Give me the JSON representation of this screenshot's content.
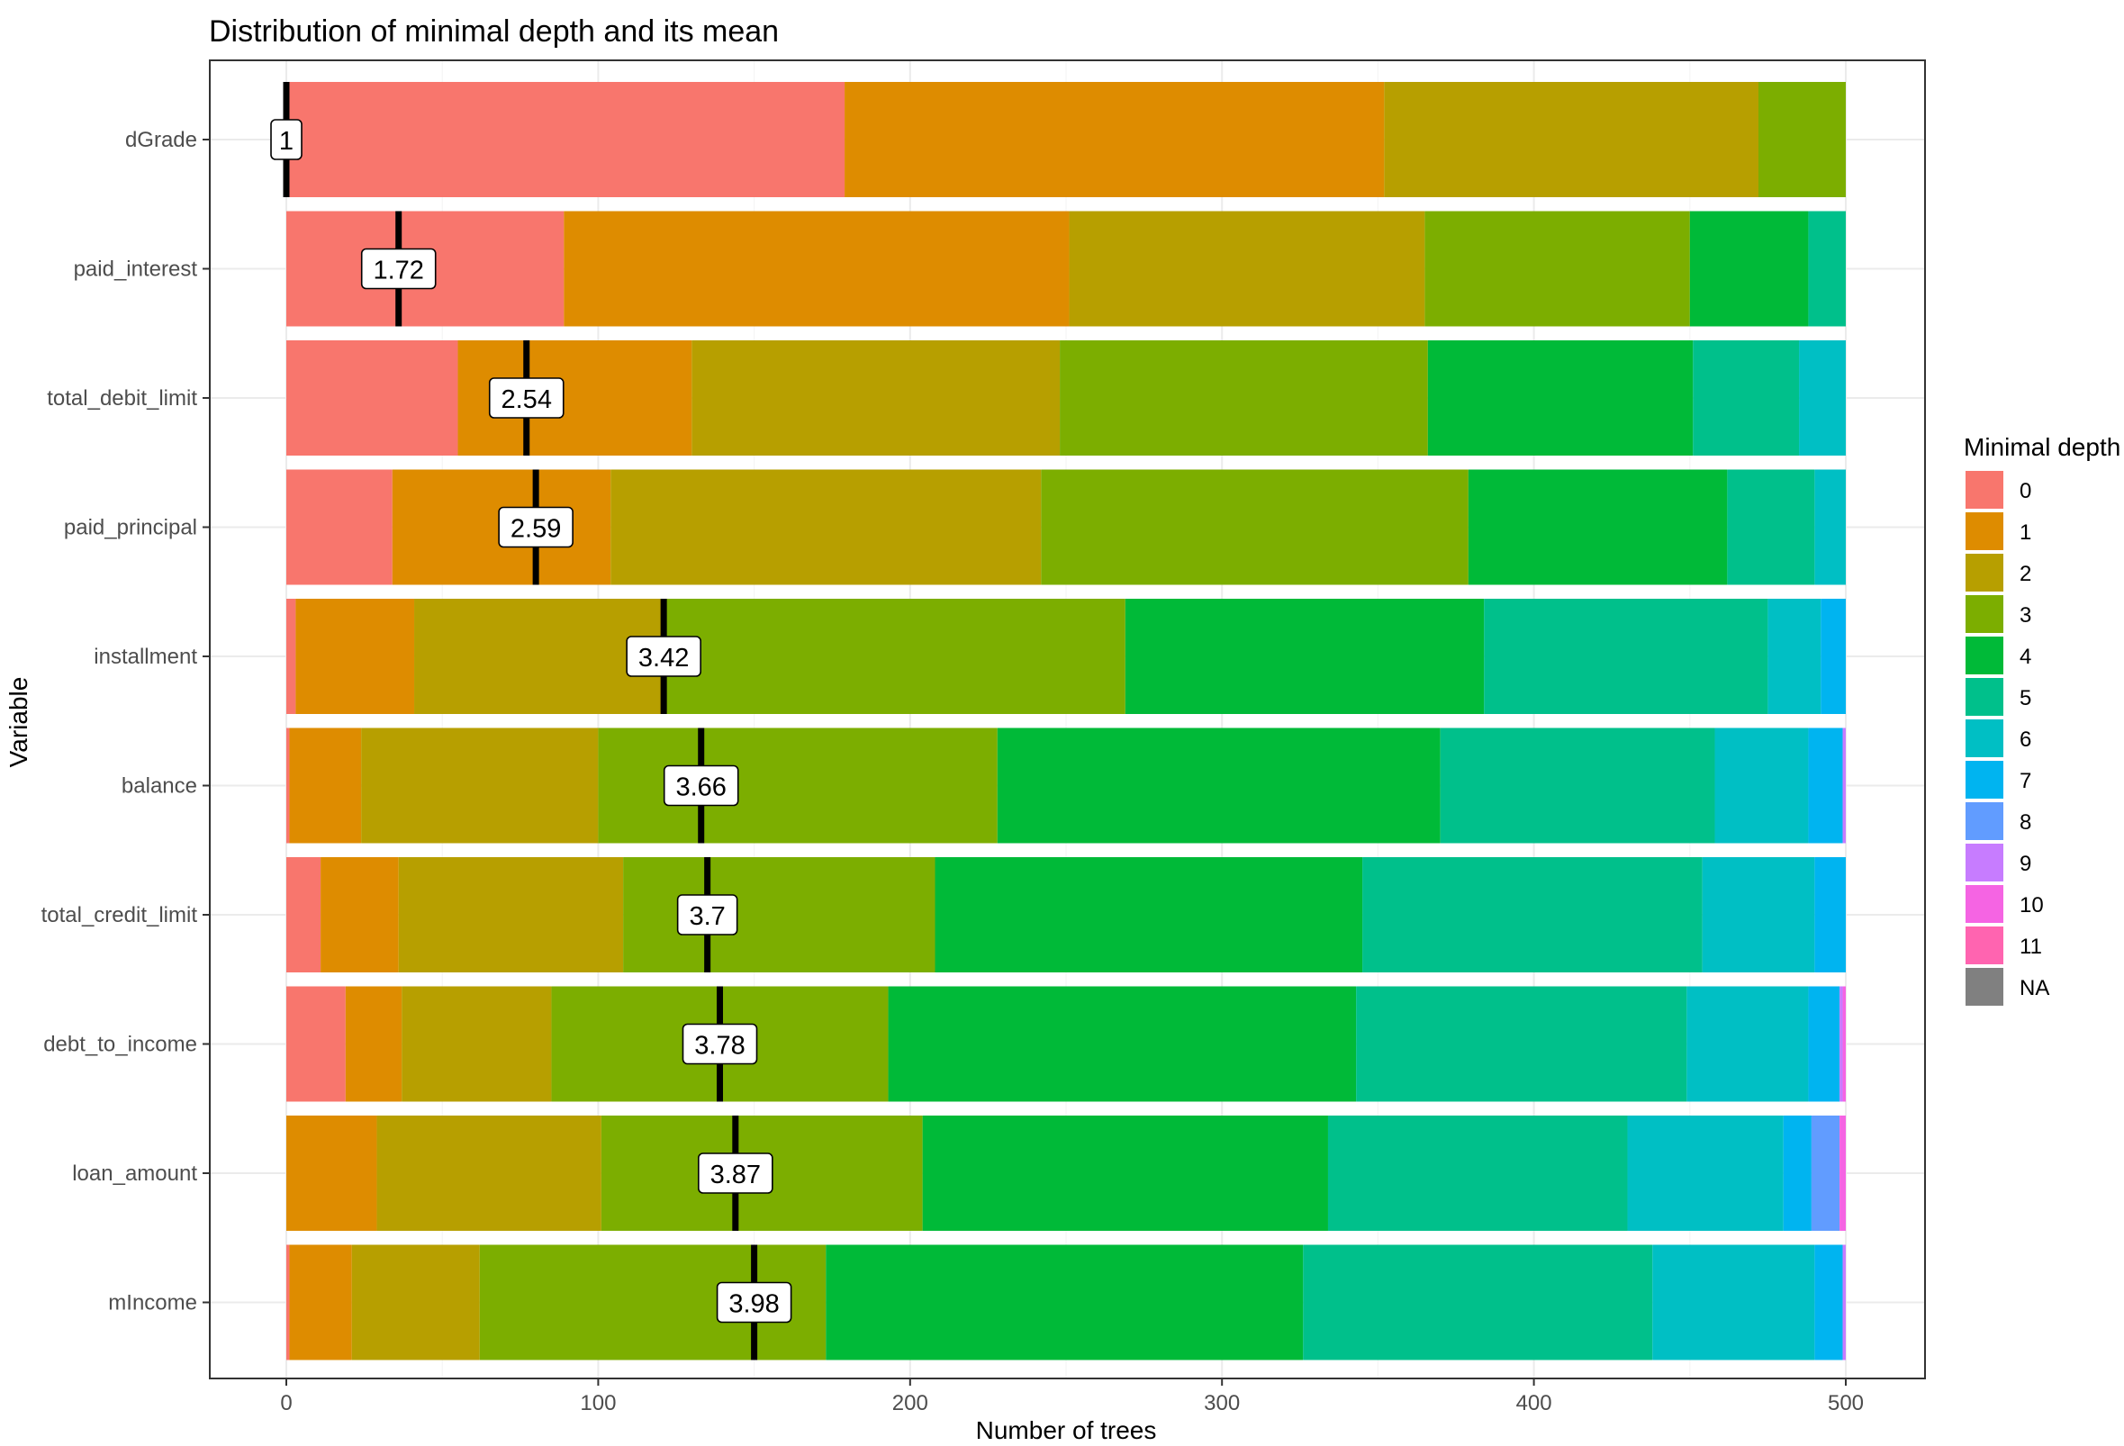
{
  "chart_data": {
    "type": "bar",
    "orientation": "horizontal",
    "stacked": true,
    "title": "Distribution of minimal depth and its mean",
    "xlabel": "Number of trees",
    "ylabel": "Variable",
    "xlim": [
      -25,
      525
    ],
    "x_ticks": [
      0,
      100,
      200,
      300,
      400,
      500
    ],
    "x_tick_labels": [
      "0",
      "100",
      "200",
      "300",
      "400",
      "500"
    ],
    "grid": true,
    "legend": {
      "title": "Minimal depth",
      "position": "right",
      "entries": [
        {
          "label": "0",
          "color": "#F8766D"
        },
        {
          "label": "1",
          "color": "#DE8C00"
        },
        {
          "label": "2",
          "color": "#B79F00"
        },
        {
          "label": "3",
          "color": "#7CAE00"
        },
        {
          "label": "4",
          "color": "#00BA38"
        },
        {
          "label": "5",
          "color": "#00C08B"
        },
        {
          "label": "6",
          "color": "#00BFC4"
        },
        {
          "label": "7",
          "color": "#00B4F0"
        },
        {
          "label": "8",
          "color": "#619CFF"
        },
        {
          "label": "9",
          "color": "#C77CFF"
        },
        {
          "label": "10",
          "color": "#F564E3"
        },
        {
          "label": "11",
          "color": "#FF64B0"
        },
        {
          "label": "NA",
          "color": "#808080"
        }
      ]
    },
    "categories": [
      "dGrade",
      "paid_interest",
      "total_debit_limit",
      "paid_principal",
      "installment",
      "balance",
      "total_credit_limit",
      "debt_to_income",
      "loan_amount",
      "mIncome"
    ],
    "series": [
      {
        "name": "0",
        "values": [
          179,
          89,
          55,
          34,
          3,
          1,
          11,
          19,
          0,
          1
        ]
      },
      {
        "name": "1",
        "values": [
          173,
          162,
          75,
          70,
          38,
          23,
          25,
          18,
          29,
          20
        ]
      },
      {
        "name": "2",
        "values": [
          120,
          114,
          118,
          138,
          80,
          76,
          72,
          48,
          72,
          41
        ]
      },
      {
        "name": "3",
        "values": [
          28,
          85,
          118,
          137,
          148,
          128,
          100,
          108,
          103,
          111
        ]
      },
      {
        "name": "4",
        "values": [
          0,
          38,
          85,
          83,
          115,
          142,
          137,
          150,
          130,
          153
        ]
      },
      {
        "name": "5",
        "values": [
          0,
          12,
          34,
          28,
          91,
          88,
          109,
          106,
          96,
          112
        ]
      },
      {
        "name": "6",
        "values": [
          0,
          0,
          15,
          10,
          17,
          30,
          36,
          39,
          50,
          52
        ]
      },
      {
        "name": "7",
        "values": [
          0,
          0,
          0,
          0,
          8,
          11,
          10,
          10,
          9,
          9
        ]
      },
      {
        "name": "8",
        "values": [
          0,
          0,
          0,
          0,
          0,
          0,
          0,
          0,
          9,
          0
        ]
      },
      {
        "name": "9",
        "values": [
          0,
          0,
          0,
          0,
          0,
          1,
          0,
          1,
          0,
          1
        ]
      },
      {
        "name": "10",
        "values": [
          0,
          0,
          0,
          0,
          0,
          0,
          0,
          1,
          2,
          0
        ]
      },
      {
        "name": "11",
        "values": [
          0,
          0,
          0,
          0,
          0,
          0,
          0,
          0,
          0,
          0
        ]
      },
      {
        "name": "NA",
        "values": [
          0,
          0,
          0,
          0,
          0,
          0,
          0,
          0,
          0,
          0
        ]
      }
    ],
    "mean_values": [
      1,
      1.72,
      2.54,
      2.59,
      3.42,
      3.66,
      3.7,
      3.78,
      3.87,
      3.98
    ],
    "mean_labels": [
      "1",
      "1.72",
      "2.54",
      "2.59",
      "3.42",
      "3.66",
      "3.7",
      "3.78",
      "3.87",
      "3.98"
    ],
    "mean_marker_x": [
      0,
      36,
      77,
      80,
      121,
      133,
      135,
      139,
      144,
      150
    ]
  }
}
